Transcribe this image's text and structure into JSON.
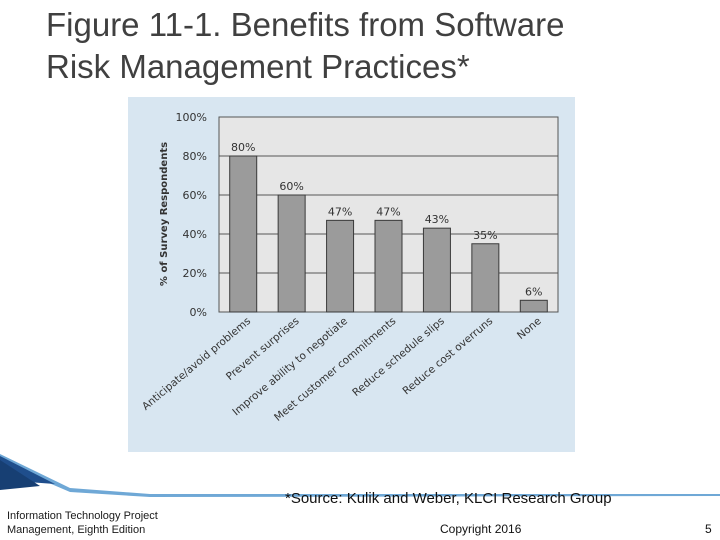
{
  "slide": {
    "title_line1": "Figure 11-1. Benefits from Software",
    "title_line2": "Risk Management Practices*",
    "source_note": "*Source: Kulik and Weber, KLCI Research Group",
    "footer_line1": "Information Technology Project",
    "footer_line2": "Management, Eighth Edition",
    "copyright": "Copyright 2016",
    "page_number": "5"
  },
  "chart_data": {
    "type": "bar",
    "title": "",
    "xlabel": "",
    "ylabel": "% of Survey Respondents",
    "categories": [
      "Anticipate/avoid problems",
      "Prevent surprises",
      "Improve ability to negotiate",
      "Meet customer commitments",
      "Reduce schedule slips",
      "Reduce cost overruns",
      "None"
    ],
    "values": [
      80,
      60,
      47,
      47,
      43,
      35,
      6
    ],
    "value_labels": [
      "80%",
      "60%",
      "47%",
      "47%",
      "43%",
      "35%",
      "6%"
    ],
    "ylim": [
      0,
      100
    ],
    "yticks": [
      0,
      20,
      40,
      60,
      80,
      100
    ],
    "ytick_labels": [
      "0%",
      "20%",
      "40%",
      "60%",
      "80%",
      "100%"
    ],
    "grid": true,
    "legend": "none",
    "colors": {
      "bar": "#9b9b9b",
      "bar_stroke": "#3a3a3a",
      "plot_bg": "#e6e6e6",
      "panel_bg": "#d8e6f1"
    }
  }
}
